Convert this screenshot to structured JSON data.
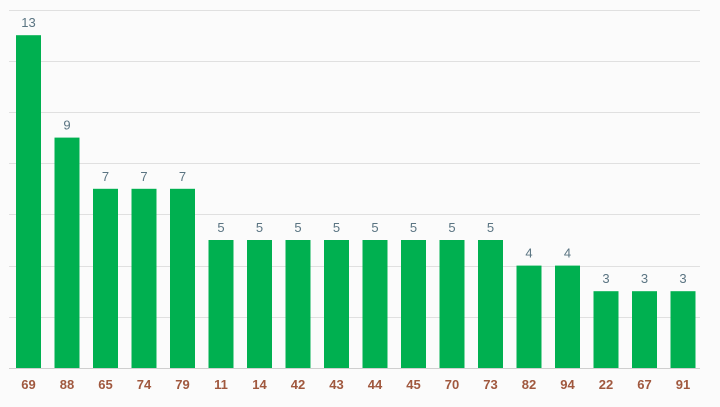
{
  "chart_data": {
    "type": "bar",
    "categories": [
      "69",
      "88",
      "65",
      "74",
      "79",
      "11",
      "14",
      "42",
      "43",
      "44",
      "45",
      "70",
      "73",
      "82",
      "94",
      "22",
      "67",
      "91"
    ],
    "values": [
      13,
      9,
      7,
      7,
      7,
      5,
      5,
      5,
      5,
      5,
      5,
      5,
      5,
      4,
      4,
      3,
      3,
      3
    ],
    "ylim": [
      0,
      14
    ],
    "grid": true,
    "bar_color": "#00b050",
    "value_label_color": "#5a7482",
    "tick_label_color": "#a0583e",
    "gridline_color": "#e0e0e0"
  }
}
